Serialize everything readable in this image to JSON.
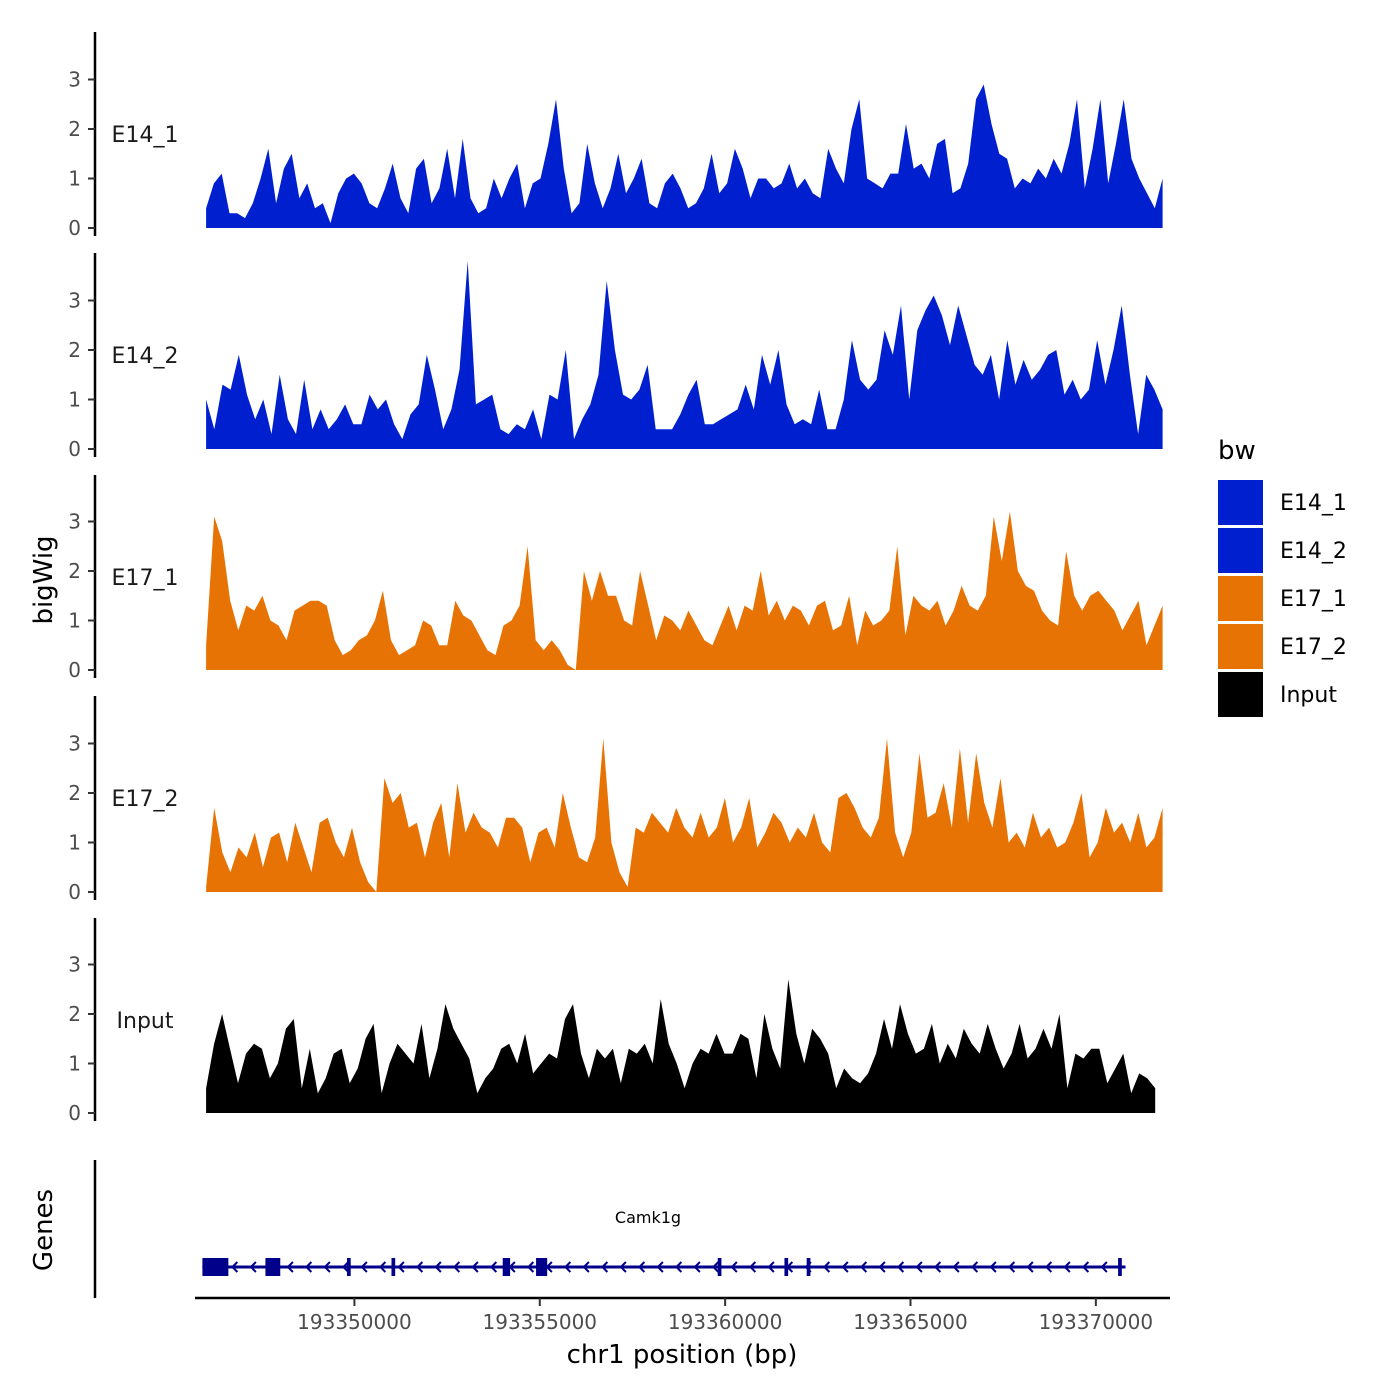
{
  "chart_data": {
    "type": "area",
    "title": "",
    "ylabel": "bigWig",
    "xlabel": "chr1 position (bp)",
    "xlim": [
      193345700,
      193372000
    ],
    "ylim": [
      0,
      3.8
    ],
    "y_ticks": [
      0,
      1,
      2,
      3
    ],
    "x_ticks": [
      193350000,
      193355000,
      193360000,
      193365000,
      193370000
    ],
    "grid": false,
    "legend": {
      "title": "bw",
      "placement": "right",
      "entries": [
        {
          "label": "E14_1",
          "color": "#0020D0"
        },
        {
          "label": "E14_2",
          "color": "#0020D0"
        },
        {
          "label": "E17_1",
          "color": "#E87305"
        },
        {
          "label": "E17_2",
          "color": "#E87305"
        },
        {
          "label": "Input",
          "color": "#000000"
        }
      ]
    },
    "series": [
      {
        "name": "E14_1",
        "color": "#0020D0",
        "x_start": 193346000,
        "x_end": 193371800,
        "values": [
          0.4,
          0.9,
          1.1,
          0.3,
          0.3,
          0.2,
          0.5,
          1.0,
          1.6,
          0.5,
          1.2,
          1.5,
          0.6,
          0.9,
          0.4,
          0.5,
          0.1,
          0.7,
          1.0,
          1.1,
          0.9,
          0.5,
          0.4,
          0.8,
          1.3,
          0.6,
          0.3,
          1.2,
          1.4,
          0.5,
          0.8,
          1.6,
          0.6,
          1.8,
          0.6,
          0.3,
          0.4,
          1.0,
          0.6,
          1.0,
          1.3,
          0.4,
          0.9,
          1.0,
          1.7,
          2.6,
          1.2,
          0.3,
          0.5,
          1.7,
          0.9,
          0.4,
          0.8,
          1.5,
          0.7,
          1.0,
          1.4,
          0.5,
          0.4,
          0.9,
          1.1,
          0.8,
          0.4,
          0.5,
          0.8,
          1.5,
          0.7,
          0.9,
          1.6,
          1.2,
          0.6,
          1.0,
          1.0,
          0.8,
          0.9,
          1.3,
          0.8,
          1.0,
          0.7,
          0.6,
          1.6,
          1.2,
          0.9,
          2.0,
          2.6,
          1.0,
          0.9,
          0.8,
          1.1,
          1.1,
          2.1,
          1.2,
          1.3,
          1.0,
          1.7,
          1.8,
          0.7,
          0.8,
          1.3,
          2.6,
          2.9,
          2.1,
          1.5,
          1.4,
          0.8,
          1.0,
          0.9,
          1.2,
          1.0,
          1.4,
          1.1,
          1.7,
          2.6,
          0.8,
          1.6,
          2.6,
          0.9,
          1.7,
          2.6,
          1.4,
          1.0,
          0.7,
          0.4,
          1.0
        ]
      },
      {
        "name": "E14_2",
        "color": "#0020D0",
        "x_start": 193346000,
        "x_end": 193371800,
        "values": [
          1.0,
          0.4,
          1.3,
          1.2,
          1.9,
          1.1,
          0.6,
          1.0,
          0.3,
          1.5,
          0.6,
          0.3,
          1.4,
          0.4,
          0.8,
          0.4,
          0.6,
          0.9,
          0.5,
          0.5,
          1.1,
          0.8,
          1.0,
          0.5,
          0.2,
          0.7,
          0.9,
          1.9,
          1.2,
          0.4,
          0.8,
          1.6,
          3.8,
          0.9,
          1.0,
          1.1,
          0.4,
          0.3,
          0.5,
          0.4,
          0.8,
          0.2,
          1.1,
          1.0,
          2.0,
          0.2,
          0.6,
          0.9,
          1.5,
          3.4,
          2.0,
          1.1,
          1.0,
          1.2,
          1.7,
          0.4,
          0.4,
          0.4,
          0.7,
          1.1,
          1.4,
          0.5,
          0.5,
          0.6,
          0.7,
          0.8,
          1.3,
          0.8,
          1.9,
          1.3,
          2.0,
          0.9,
          0.5,
          0.6,
          0.5,
          1.2,
          0.4,
          0.4,
          1.0,
          2.2,
          1.4,
          1.2,
          1.4,
          2.4,
          1.9,
          2.9,
          1.0,
          2.4,
          2.8,
          3.1,
          2.7,
          2.1,
          2.9,
          2.3,
          1.7,
          1.5,
          1.9,
          1.0,
          2.2,
          1.3,
          1.8,
          1.4,
          1.6,
          1.9,
          2.0,
          1.1,
          1.4,
          1.0,
          1.2,
          2.2,
          1.3,
          2.0,
          2.9,
          1.5,
          0.3,
          1.5,
          1.2,
          0.8
        ]
      },
      {
        "name": "E17_1",
        "color": "#E87305",
        "x_start": 193346000,
        "x_end": 193371800,
        "values": [
          0.5,
          3.1,
          2.6,
          1.4,
          0.8,
          1.3,
          1.2,
          1.5,
          1.0,
          0.9,
          0.6,
          1.2,
          1.3,
          1.4,
          1.4,
          1.3,
          0.6,
          0.3,
          0.4,
          0.6,
          0.7,
          1.0,
          1.6,
          0.6,
          0.3,
          0.4,
          0.5,
          1.0,
          0.9,
          0.5,
          0.5,
          1.4,
          1.1,
          1.0,
          0.7,
          0.4,
          0.3,
          0.9,
          1.0,
          1.3,
          2.5,
          0.6,
          0.4,
          0.6,
          0.4,
          0.1,
          0.0,
          2.0,
          1.4,
          2.0,
          1.5,
          1.5,
          1.0,
          0.9,
          2.0,
          1.3,
          0.6,
          1.1,
          1.0,
          0.8,
          1.2,
          0.9,
          0.6,
          0.5,
          0.9,
          1.3,
          0.8,
          1.3,
          1.2,
          2.0,
          1.1,
          1.4,
          1.0,
          1.3,
          1.2,
          0.9,
          1.3,
          1.4,
          0.8,
          0.9,
          1.5,
          0.5,
          1.2,
          0.9,
          1.0,
          1.2,
          2.5,
          0.7,
          1.5,
          1.3,
          1.2,
          1.4,
          0.9,
          1.2,
          1.7,
          1.3,
          1.2,
          1.5,
          3.1,
          2.2,
          3.2,
          2.0,
          1.7,
          1.6,
          1.2,
          1.0,
          0.9,
          2.4,
          1.5,
          1.2,
          1.5,
          1.6,
          1.4,
          1.2,
          0.8,
          1.1,
          1.4,
          0.5,
          0.9,
          1.3
        ]
      },
      {
        "name": "E17_2",
        "color": "#E87305",
        "x_start": 193346000,
        "x_end": 193371800,
        "values": [
          0.1,
          1.7,
          0.8,
          0.4,
          0.9,
          0.7,
          1.2,
          0.5,
          1.1,
          1.2,
          0.6,
          1.4,
          0.9,
          0.4,
          1.4,
          1.5,
          1.0,
          0.7,
          1.3,
          0.6,
          0.2,
          0.0,
          2.3,
          1.8,
          2.0,
          1.3,
          1.4,
          0.7,
          1.4,
          1.8,
          0.7,
          2.2,
          1.2,
          1.6,
          1.3,
          1.2,
          0.9,
          1.5,
          1.5,
          1.3,
          0.6,
          1.2,
          1.3,
          0.9,
          2.0,
          1.3,
          0.7,
          0.6,
          1.1,
          3.1,
          1.0,
          0.4,
          0.1,
          1.3,
          1.2,
          1.6,
          1.4,
          1.2,
          1.7,
          1.3,
          1.1,
          1.6,
          1.1,
          1.3,
          1.9,
          1.0,
          1.3,
          1.9,
          0.9,
          1.2,
          1.6,
          1.4,
          1.0,
          1.3,
          1.1,
          1.6,
          1.0,
          0.8,
          1.9,
          2.0,
          1.7,
          1.3,
          1.1,
          1.5,
          3.1,
          1.2,
          0.7,
          1.2,
          2.8,
          1.5,
          1.6,
          2.2,
          1.3,
          2.9,
          1.4,
          2.8,
          1.8,
          1.3,
          2.3,
          1.0,
          1.2,
          0.9,
          1.6,
          1.1,
          1.3,
          0.9,
          1.0,
          1.4,
          2.0,
          0.7,
          1.0,
          1.7,
          1.2,
          1.4,
          1.0,
          1.6,
          0.9,
          1.1,
          1.7
        ]
      },
      {
        "name": "Input",
        "color": "#000000",
        "x_start": 193346000,
        "x_end": 193371600,
        "values": [
          0.5,
          1.4,
          2.0,
          1.3,
          0.6,
          1.2,
          1.4,
          1.3,
          0.7,
          1.0,
          1.7,
          1.9,
          0.5,
          1.3,
          0.4,
          0.7,
          1.2,
          1.3,
          0.6,
          0.9,
          1.5,
          1.8,
          0.4,
          1.0,
          1.4,
          1.2,
          1.0,
          1.8,
          0.7,
          1.3,
          2.2,
          1.7,
          1.4,
          1.1,
          0.4,
          0.7,
          0.9,
          1.3,
          1.4,
          1.0,
          1.6,
          0.8,
          1.0,
          1.2,
          1.1,
          1.9,
          2.2,
          1.2,
          0.7,
          1.3,
          1.1,
          1.3,
          0.6,
          1.3,
          1.2,
          1.4,
          1.0,
          2.3,
          1.4,
          1.0,
          0.5,
          1.0,
          1.3,
          1.2,
          1.6,
          1.2,
          1.2,
          1.6,
          1.5,
          0.7,
          2.0,
          1.3,
          0.9,
          2.7,
          1.6,
          1.0,
          1.7,
          1.5,
          1.2,
          0.5,
          0.9,
          0.7,
          0.6,
          0.8,
          1.2,
          1.9,
          1.3,
          2.2,
          1.6,
          1.2,
          1.3,
          1.8,
          1.0,
          1.4,
          1.1,
          1.7,
          1.4,
          1.2,
          1.8,
          1.3,
          0.9,
          1.2,
          1.8,
          1.1,
          1.3,
          1.7,
          1.3,
          2.0,
          0.5,
          1.2,
          1.1,
          1.3,
          1.3,
          0.6,
          0.9,
          1.2,
          0.4,
          0.8,
          0.7,
          0.5
        ]
      }
    ],
    "track_labels": [
      "E14_1",
      "E14_2",
      "E17_1",
      "E17_2",
      "Input"
    ],
    "gene_track": {
      "ylabel": "Genes",
      "gene": {
        "name": "Camk1g",
        "start": 193345900,
        "end": 193370800,
        "strand": "-",
        "color": "#00008B",
        "exons": [
          [
            193345900,
            193346600
          ],
          [
            193347600,
            193348000
          ],
          [
            193349800,
            193349900
          ],
          [
            193351000,
            193351100
          ],
          [
            193354000,
            193354200
          ],
          [
            193354900,
            193355200
          ],
          [
            193359800,
            193359900
          ],
          [
            193361600,
            193361700
          ],
          [
            193362200,
            193362300
          ],
          [
            193370600,
            193370700
          ]
        ]
      }
    }
  }
}
